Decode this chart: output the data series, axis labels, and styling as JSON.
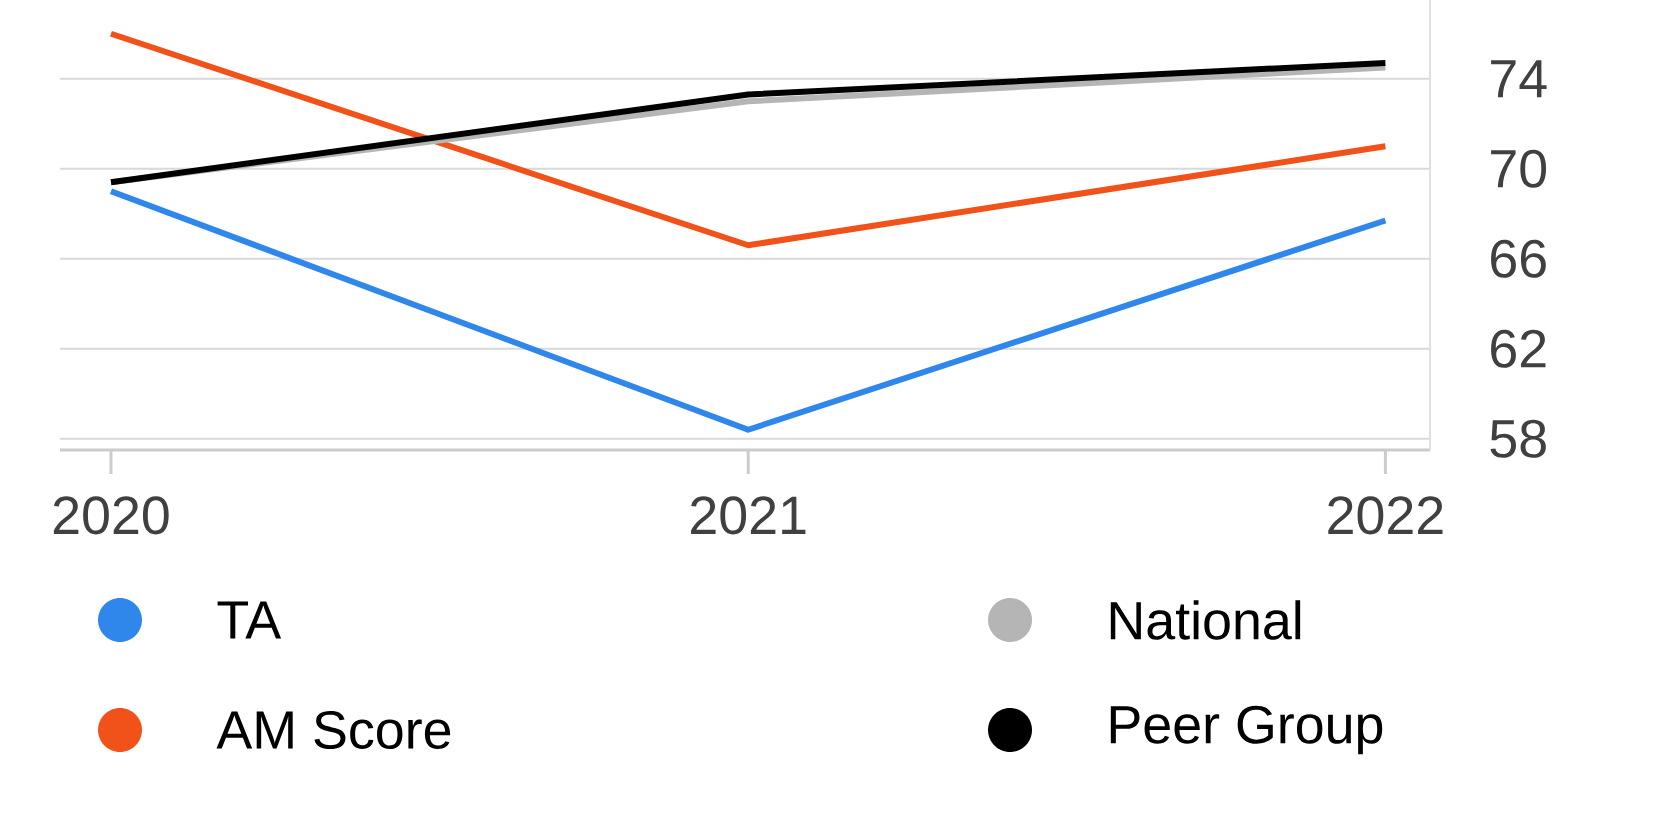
{
  "chart_data": {
    "type": "line",
    "categories": [
      "2020",
      "2021",
      "2022"
    ],
    "series": [
      {
        "name": "TA",
        "color": "#2f86eb",
        "values": [
          69.0,
          58.4,
          67.7
        ]
      },
      {
        "name": "AM Score",
        "color": "#f0521a",
        "values": [
          76.0,
          66.6,
          71.0
        ]
      },
      {
        "name": "National",
        "color": "#b5b5b5",
        "values": [
          69.4,
          73.0,
          74.5
        ]
      },
      {
        "name": "Peer Group",
        "color": "#000000",
        "values": [
          69.4,
          73.3,
          74.7
        ]
      }
    ],
    "ylim": [
      57.5,
      77.5
    ],
    "yticks": [
      58,
      62,
      66,
      70,
      74
    ],
    "grid": "y",
    "legend": "bottom",
    "marker": "none",
    "line_style": "solid"
  }
}
